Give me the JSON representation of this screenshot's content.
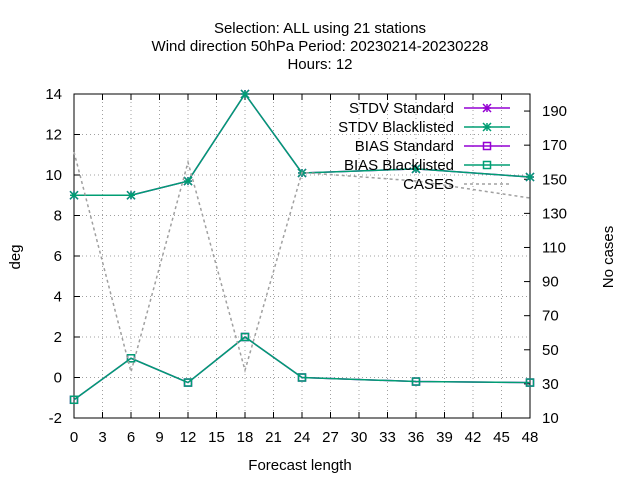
{
  "chart_data": {
    "type": "line",
    "title_lines": [
      "Selection: ALL using    21 stations",
      "Wind direction 50hPa   Period: 20230214-20230228",
      "Hours:  12"
    ],
    "xlabel": "Forecast length",
    "ylabel": "deg",
    "y2label": "No cases",
    "xlim": [
      0,
      48
    ],
    "ylim": [
      -2,
      14
    ],
    "y2lim": [
      10,
      200
    ],
    "xticks": [
      "0",
      "3",
      "6",
      "9",
      "12",
      "15",
      "18",
      "21",
      "24",
      "27",
      "30",
      "33",
      "36",
      "39",
      "42",
      "45",
      "48"
    ],
    "yticks": [
      "-2",
      "0",
      "2",
      "4",
      "6",
      "8",
      "10",
      "12",
      "14"
    ],
    "y2ticks": [
      "10",
      "30",
      "50",
      "70",
      "90",
      "110",
      "130",
      "150",
      "170",
      "190"
    ],
    "grid": true,
    "legend_position": "top-right",
    "x": [
      0,
      6,
      12,
      18,
      24,
      36,
      48
    ],
    "series": [
      {
        "name": "STDV Standard",
        "axis": "y",
        "color": "#9400d3",
        "marker": "x-star",
        "values": [
          9.0,
          9.0,
          9.7,
          14.0,
          10.1,
          10.3,
          9.9
        ]
      },
      {
        "name": "STDV Blacklisted",
        "axis": "y",
        "color": "#009e73",
        "marker": "x-star",
        "values": [
          9.0,
          9.0,
          9.7,
          14.0,
          10.1,
          10.3,
          9.9
        ]
      },
      {
        "name": "BIAS Standard",
        "axis": "y",
        "color": "#9400d3",
        "marker": "square",
        "values": [
          -1.1,
          0.95,
          -0.25,
          2.0,
          0.0,
          -0.2,
          -0.25
        ]
      },
      {
        "name": "BIAS Blacklisted",
        "axis": "y",
        "color": "#009e73",
        "marker": "square",
        "values": [
          -1.1,
          0.95,
          -0.25,
          2.0,
          0.0,
          -0.2,
          -0.25
        ]
      },
      {
        "name": "CASES",
        "axis": "y2",
        "color": "#a0a0a0",
        "dashed": true,
        "values": [
          166,
          37,
          160,
          38,
          154,
          149,
          139
        ]
      }
    ]
  }
}
